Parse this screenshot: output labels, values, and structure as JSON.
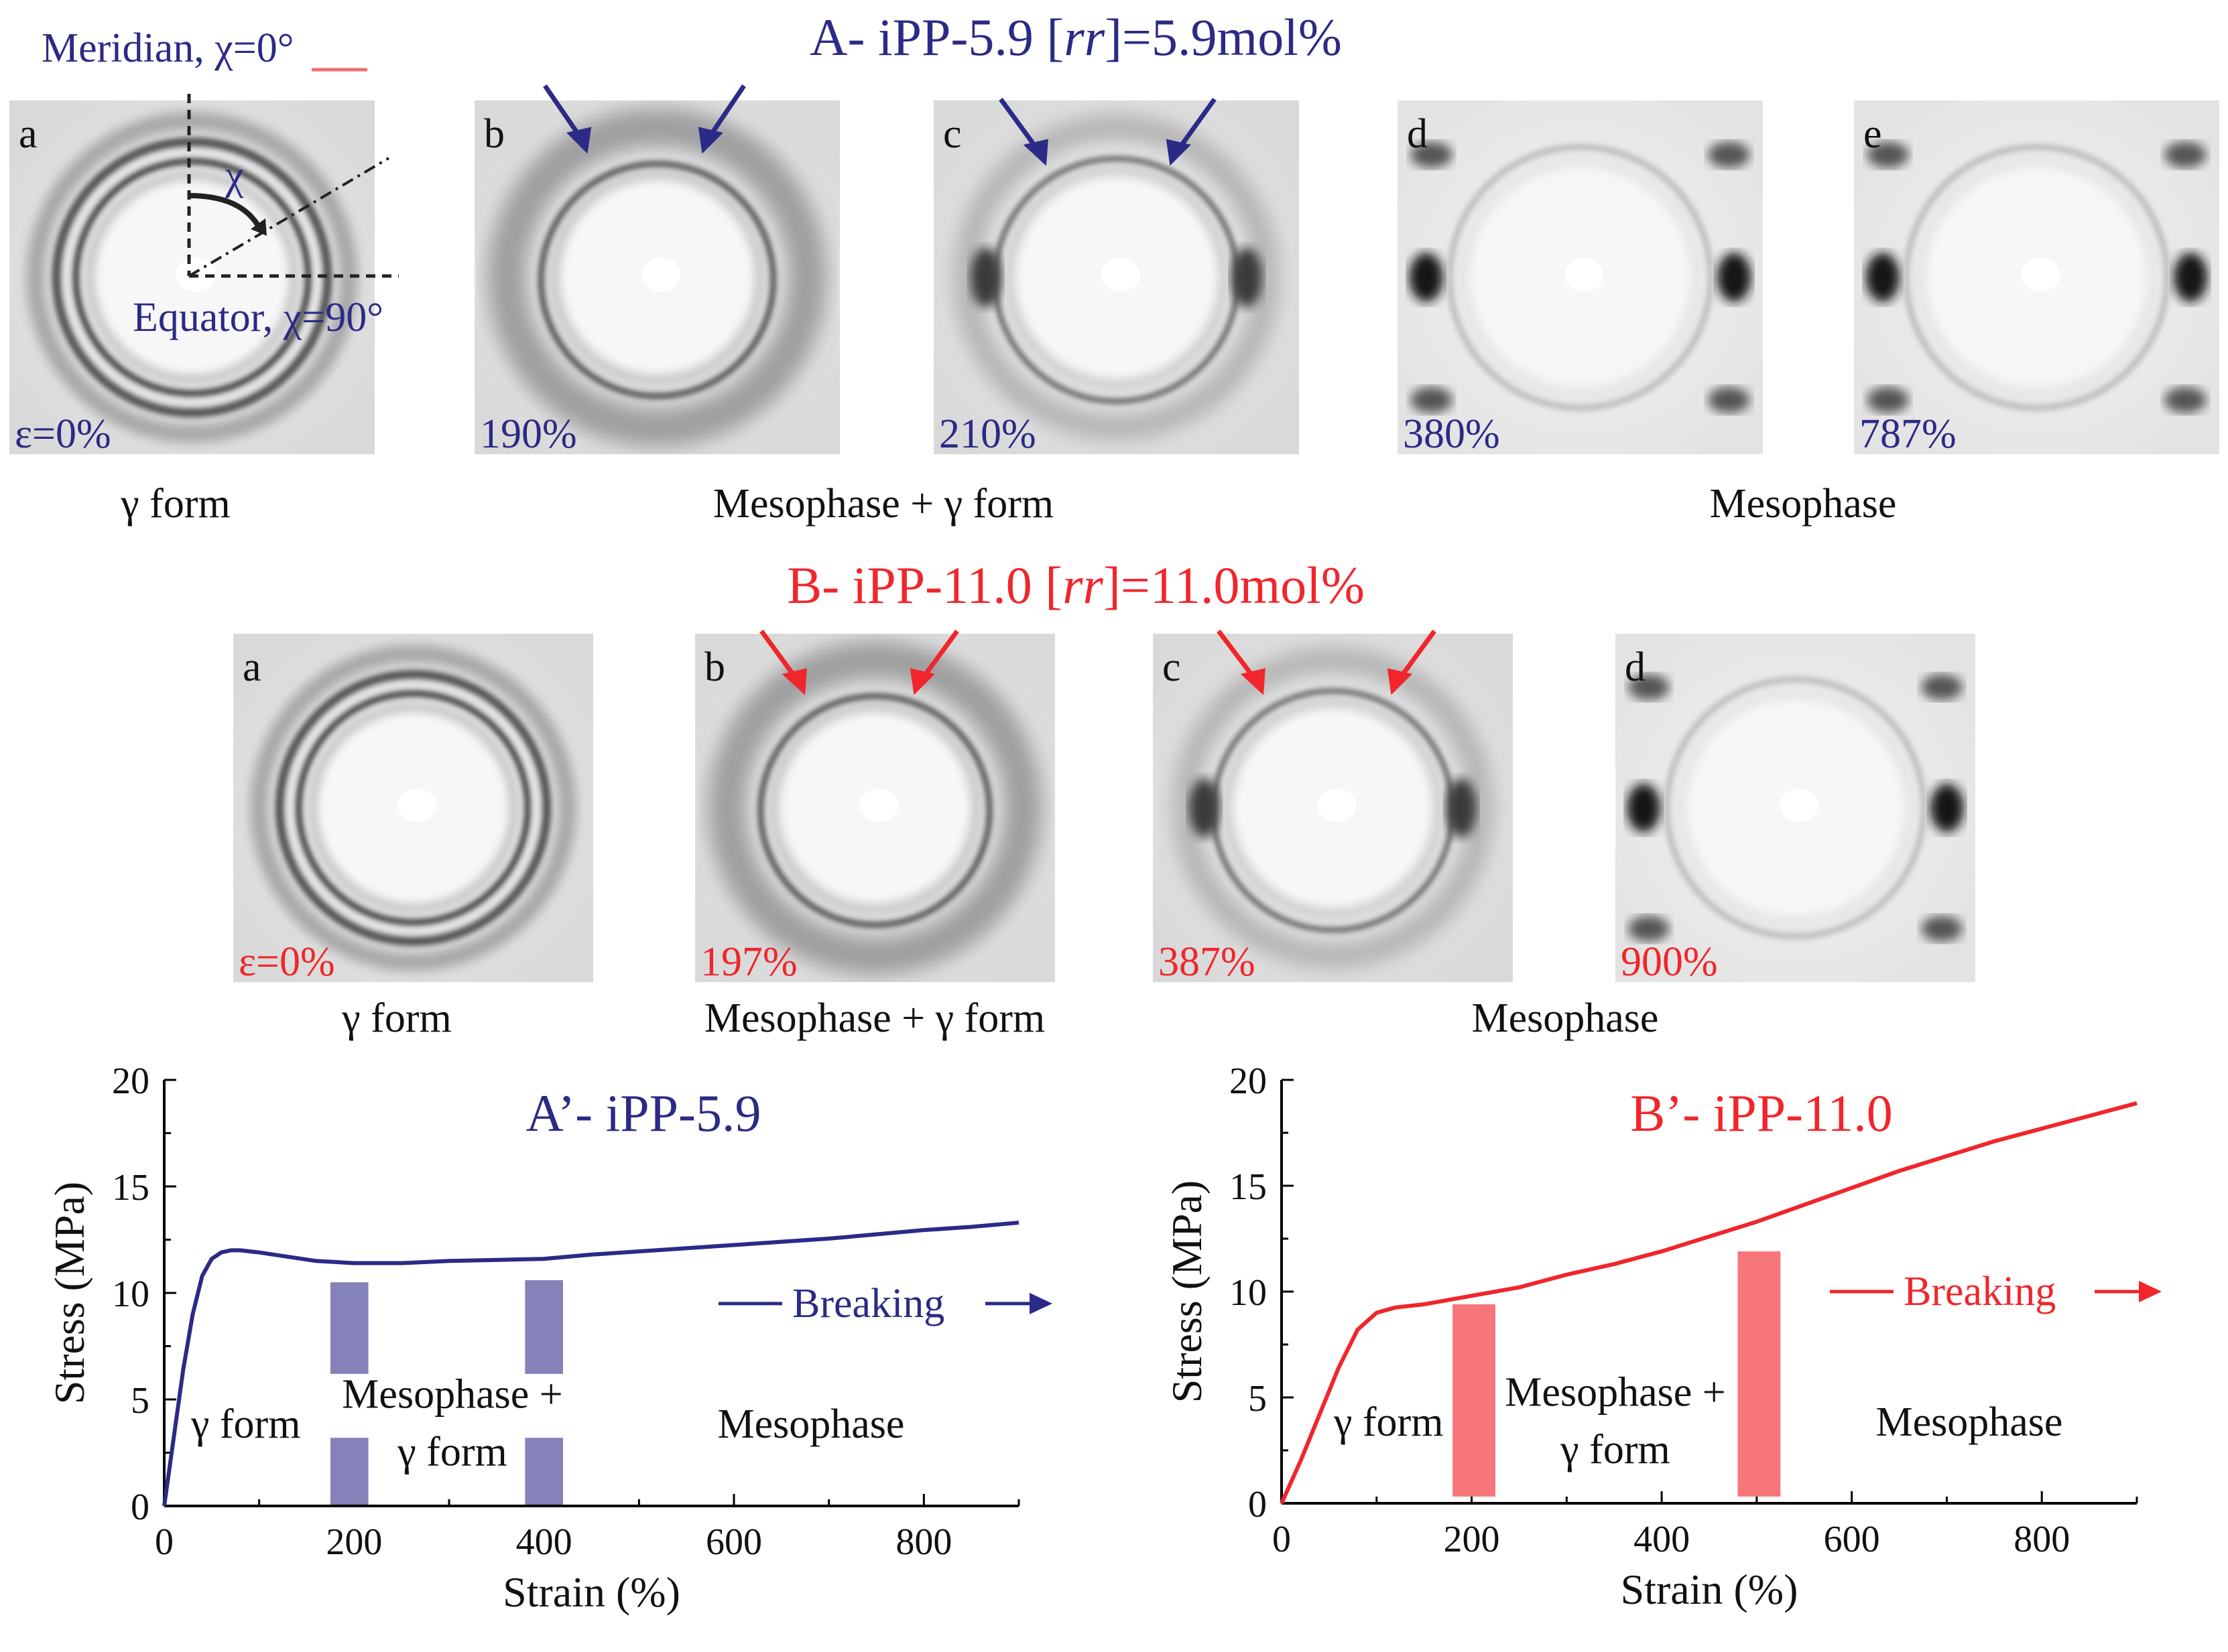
{
  "figure": {
    "panel_a_title": {
      "prefix": "A- iPP-5.9 [",
      "ital": "rr",
      "suffix": "]=5.9mol%"
    },
    "panel_b_title": {
      "prefix": "B- iPP-11.0 [",
      "ital": "rr",
      "suffix": "]=11.0mol%"
    },
    "colors": {
      "blue": "#2b2a86",
      "red": "#f0262b",
      "bar_blue": "#8482b8",
      "bar_red": "#f6767a"
    },
    "annotation": {
      "meridian": "Meridian, χ=0°",
      "equator": "Equator, χ=90°",
      "chi": "χ"
    },
    "row_a": {
      "patterns": [
        {
          "letter": "a",
          "strain": "ε=0%"
        },
        {
          "letter": "b",
          "strain": "190%"
        },
        {
          "letter": "c",
          "strain": "210%"
        },
        {
          "letter": "d",
          "strain": "380%"
        },
        {
          "letter": "e",
          "strain": "787%"
        }
      ],
      "labels": [
        "γ form",
        "Mesophase + γ form",
        "Mesophase"
      ]
    },
    "row_b": {
      "patterns": [
        {
          "letter": "a",
          "strain": "ε=0%"
        },
        {
          "letter": "b",
          "strain": "197%"
        },
        {
          "letter": "c",
          "strain": "387%"
        },
        {
          "letter": "d",
          "strain": "900%"
        }
      ],
      "labels": [
        "γ form",
        "Mesophase + γ form",
        "Mesophase"
      ]
    }
  },
  "chart_data": [
    {
      "type": "line",
      "title": "A’- iPP-5.9",
      "xlabel": "Strain (%)",
      "ylabel": "Stress (MPa)",
      "xlim": [
        0,
        900
      ],
      "ylim": [
        0,
        20
      ],
      "xticks": [
        0,
        200,
        400,
        600,
        800
      ],
      "yticks": [
        0,
        5,
        10,
        15,
        20
      ],
      "series": [
        {
          "name": "iPP-5.9",
          "x": [
            0,
            10,
            20,
            30,
            40,
            50,
            60,
            70,
            80,
            100,
            130,
            160,
            200,
            250,
            300,
            350,
            400,
            450,
            500,
            550,
            600,
            650,
            700,
            750,
            800,
            850,
            900
          ],
          "y": [
            0,
            3.2,
            6.4,
            9.0,
            10.8,
            11.6,
            11.9,
            12.0,
            12.0,
            11.9,
            11.7,
            11.5,
            11.4,
            11.4,
            11.5,
            11.55,
            11.6,
            11.8,
            11.95,
            12.1,
            12.25,
            12.4,
            12.55,
            12.75,
            12.95,
            13.1,
            13.3
          ]
        }
      ],
      "transition_bars": [
        {
          "x_from": 175,
          "x_to": 215,
          "y_top": 10.5
        },
        {
          "x_from": 380,
          "x_to": 420,
          "y_top": 10.6
        }
      ],
      "region_labels": [
        "γ form",
        "Mesophase +",
        "γ form",
        "Mesophase"
      ],
      "breaking_label": "Breaking"
    },
    {
      "type": "line",
      "title": "B’- iPP-11.0",
      "xlabel": "Strain (%)",
      "ylabel": "Stress (MPa)",
      "xlim": [
        0,
        900
      ],
      "ylim": [
        0,
        20
      ],
      "xticks": [
        0,
        200,
        400,
        600,
        800
      ],
      "yticks": [
        0,
        5,
        10,
        15,
        20
      ],
      "series": [
        {
          "name": "iPP-11.0",
          "x": [
            0,
            10,
            20,
            40,
            60,
            80,
            100,
            120,
            150,
            200,
            250,
            300,
            350,
            400,
            450,
            500,
            550,
            600,
            650,
            700,
            750,
            800,
            850,
            900
          ],
          "y": [
            0,
            1.0,
            2.0,
            4.2,
            6.4,
            8.2,
            9.0,
            9.25,
            9.4,
            9.8,
            10.2,
            10.8,
            11.3,
            11.9,
            12.6,
            13.3,
            14.1,
            14.9,
            15.7,
            16.4,
            17.1,
            17.7,
            18.3,
            18.9
          ]
        }
      ],
      "transition_bars": [
        {
          "x_from": 180,
          "x_to": 225,
          "y_top": 9.4
        },
        {
          "x_from": 480,
          "x_to": 525,
          "y_top": 11.9
        }
      ],
      "region_labels": [
        "γ form",
        "Mesophase +",
        "γ form",
        "Mesophase"
      ],
      "breaking_label": "Breaking"
    }
  ]
}
